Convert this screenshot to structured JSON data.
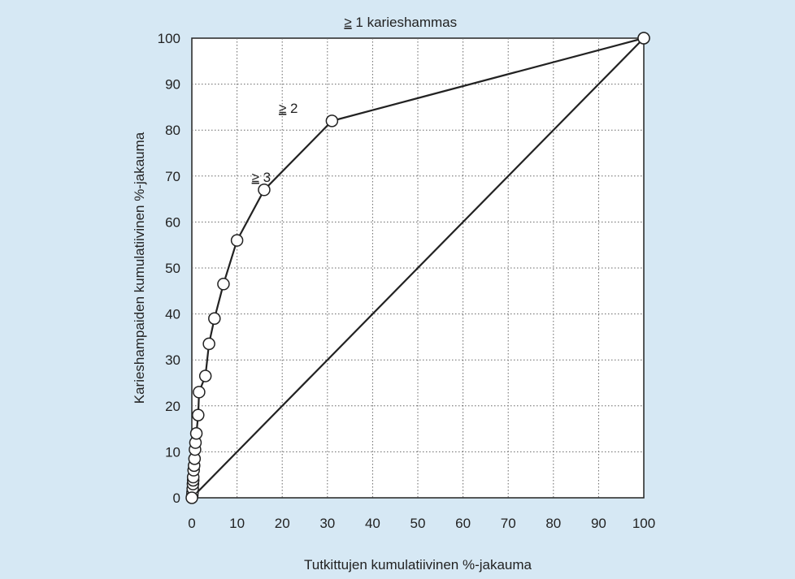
{
  "chart_data": {
    "type": "line",
    "xlabel": "Tutkittujen kumulatiivinen %-jakauma",
    "ylabel": "Karieshampaiden kumulatiivinen %-jakauma",
    "xlim": [
      0,
      100
    ],
    "ylim": [
      0,
      100
    ],
    "xticks": [
      0,
      10,
      20,
      30,
      40,
      50,
      60,
      70,
      80,
      90,
      100
    ],
    "yticks": [
      0,
      10,
      20,
      30,
      40,
      50,
      60,
      70,
      80,
      90,
      100
    ],
    "grid": true,
    "series": [
      {
        "x": [
          0.1,
          0.15,
          0.2,
          0.25,
          0.3,
          0.3,
          0.4,
          0.5,
          0.6,
          0.7,
          0.8,
          1.0,
          1.4,
          1.6,
          3.0,
          3.8,
          5.0,
          7.0,
          10.0,
          16.0,
          31.0,
          100.0
        ],
        "y": [
          0.5,
          1.2,
          2.0,
          3.0,
          3.8,
          4.5,
          6.0,
          7.0,
          8.5,
          10.5,
          12.0,
          14.0,
          18.0,
          23.0,
          26.5,
          33.5,
          39.0,
          46.5,
          56.0,
          67.0,
          82.0,
          100.0
        ]
      },
      {
        "x": [
          0,
          100
        ],
        "y": [
          0,
          100
        ]
      }
    ],
    "annotations": [
      {
        "text": "> 1 karieshammas",
        "x": 31,
        "y": 100
      },
      {
        "text": "> 2",
        "x": 16,
        "y": 82
      },
      {
        "text": "> 3",
        "x": 10,
        "y": 67
      }
    ]
  }
}
